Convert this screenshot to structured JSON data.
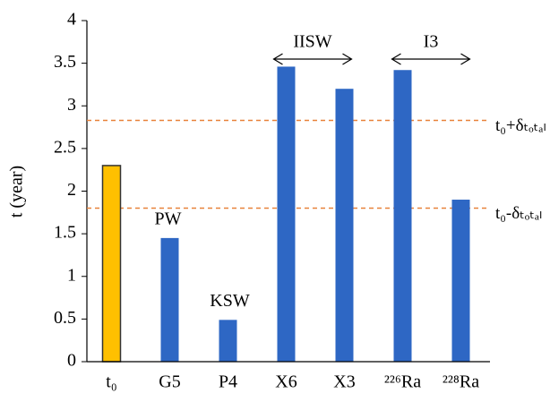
{
  "chart_data": {
    "type": "bar",
    "y_label": "t (year)",
    "categories": [
      "t₀",
      "G5",
      "P4",
      "X6",
      "X3",
      "²²⁶Ra",
      "²²⁸Ra"
    ],
    "values": [
      2.3,
      1.45,
      0.49,
      3.46,
      3.2,
      3.42,
      1.9
    ],
    "colors": [
      "#ffc000",
      "#2e67c4",
      "#2e67c4",
      "#2e67c4",
      "#2e67c4",
      "#2e67c4",
      "#2e67c4"
    ],
    "ylim": [
      0,
      4
    ],
    "yticks": [
      0,
      0.5,
      1,
      1.5,
      2,
      2.5,
      3,
      3.5,
      4
    ],
    "reference_lines": [
      {
        "value": 2.83,
        "label": "t₀+δₜₒₜₐₗ",
        "color": "#e8823a"
      },
      {
        "value": 1.8,
        "label": "t₀-δₜₒₜₐₗ",
        "color": "#e8823a"
      }
    ],
    "annotations": [
      "PW",
      "KSW",
      "IISW",
      "I3"
    ]
  }
}
